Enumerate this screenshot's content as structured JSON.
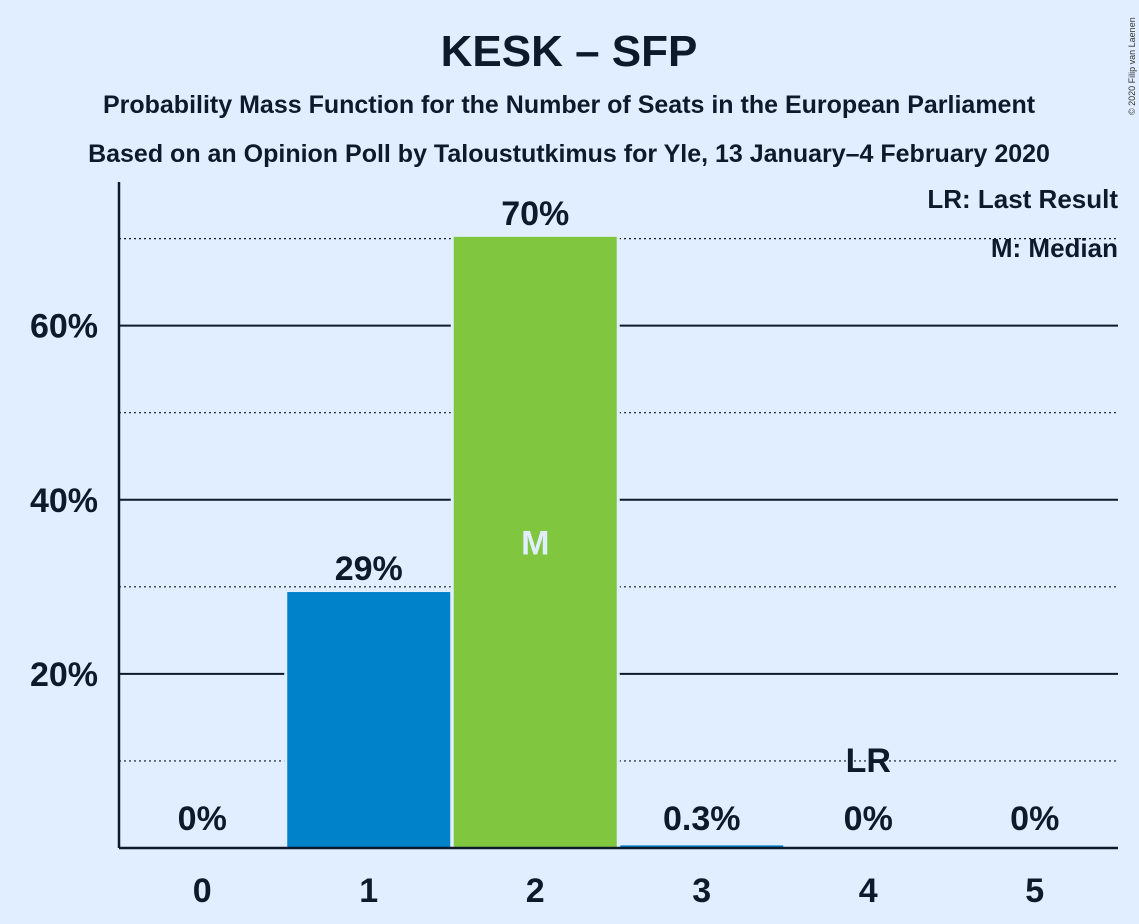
{
  "title": "KESK – SFP",
  "subtitle_line1": "Probability Mass Function for the Number of Seats in the European Parliament",
  "subtitle_line2": "Based on an Opinion Poll by Taloustutkimus for Yle, 13 January–4 February 2020",
  "copyright": "© 2020 Filip van Laenen",
  "legend": {
    "last_result": "LR: Last Result",
    "median": "M: Median"
  },
  "colors": {
    "background": "#e1eeff",
    "bar_default": "#0082ca",
    "bar_median": "#80c73f",
    "text": "#0d1a2b",
    "median_marker": "#e1eeff"
  },
  "chart_data": {
    "type": "bar",
    "categories": [
      "0",
      "1",
      "2",
      "3",
      "4",
      "5"
    ],
    "values": [
      0,
      29.4,
      70.2,
      0.3,
      0,
      0
    ],
    "data_labels": [
      "0%",
      "29%",
      "70%",
      "0.3%",
      "0%",
      "0%"
    ],
    "ylim": [
      0,
      76.5
    ],
    "y_ticks": [
      20,
      40,
      60
    ],
    "y_tick_labels": [
      "20%",
      "40%",
      "60%"
    ],
    "y_minor_gridlines": [
      10,
      30,
      50,
      70
    ],
    "median_category": "2",
    "median_marker": "M",
    "last_result_category": "4",
    "last_result_marker": "LR",
    "legend_position": "top-right",
    "grid": true
  }
}
